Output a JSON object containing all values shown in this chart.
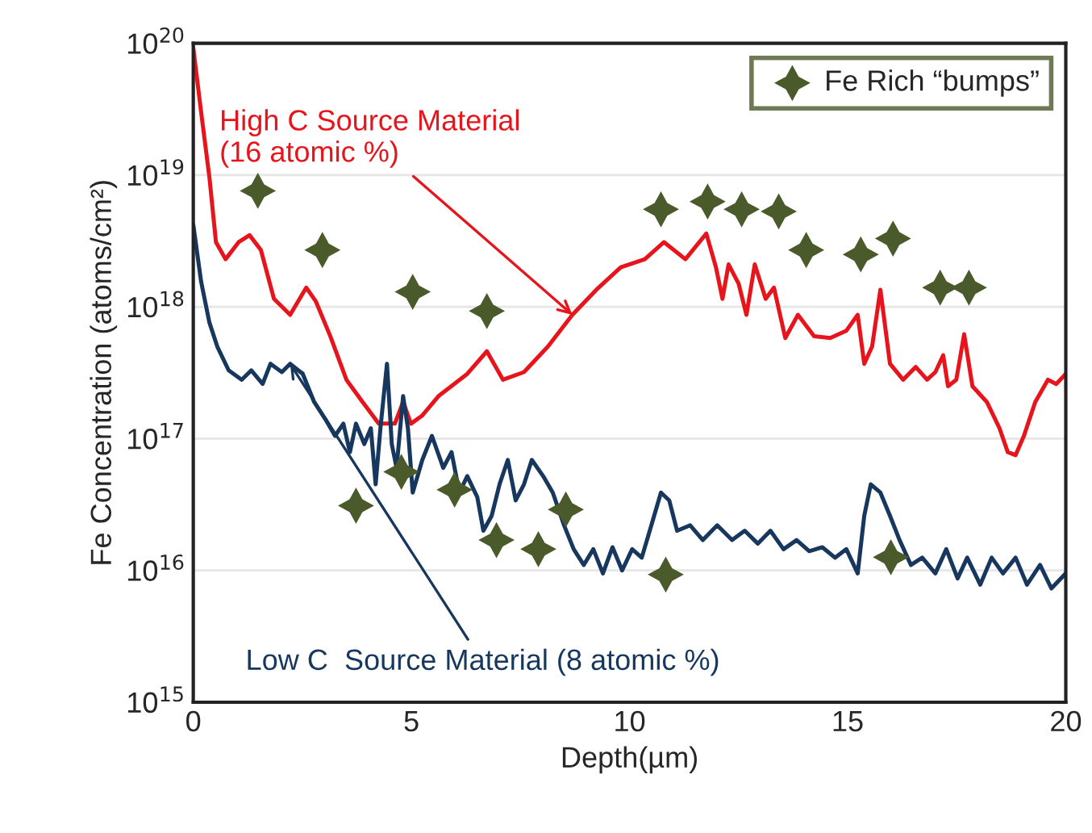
{
  "chart_data": {
    "type": "line",
    "xlabel": "Depth(µm)",
    "ylabel": "Fe Concentration (atoms/cm²)",
    "log": "y",
    "grid": "y",
    "legend": "top right",
    "xlim": [
      0,
      20
    ],
    "xticks": [
      0,
      5,
      10,
      15,
      20
    ],
    "ylim": [
      1000000000000000.0,
      1e+20
    ],
    "yticks": [
      {
        "value": 1000000000000000.0,
        "label": "10$^{15}$"
      },
      {
        "value": 1e+16,
        "label": "10$^{16}$"
      },
      {
        "value": 1e+17,
        "label": "10$^{17}$"
      },
      {
        "value": 1e+18,
        "label": "10$^{18}$"
      },
      {
        "value": 1e+19,
        "label": "10$^{19}$"
      },
      {
        "value": 1e+20,
        "label": "10$^{20}$"
      }
    ],
    "series": [
      {
        "color": "#e8141c",
        "marker": "none",
        "line_style": "solid",
        "x": [
          0,
          0.18,
          0.37,
          0.52,
          0.74,
          1.04,
          1.29,
          1.55,
          1.85,
          2.22,
          2.59,
          2.81,
          3.14,
          3.51,
          3.88,
          4.25,
          4.62,
          4.81,
          4.99,
          5.25,
          5.62,
          6.28,
          6.73,
          7.1,
          7.58,
          8.13,
          8.69,
          9.24,
          9.8,
          10.35,
          10.79,
          11.28,
          11.76,
          11.98,
          12.13,
          12.27,
          12.5,
          12.68,
          12.87,
          13.12,
          13.31,
          13.57,
          13.86,
          14.23,
          14.6,
          14.97,
          15.23,
          15.38,
          15.56,
          15.75,
          15.97,
          16.27,
          16.56,
          16.82,
          17.01,
          17.19,
          17.3,
          17.49,
          17.67,
          17.86,
          18.19,
          18.48,
          18.67,
          18.85,
          19.04,
          19.3,
          19.59,
          19.78,
          20.0
        ],
        "values": [
          9.2e+19,
          3e+19,
          9.6e+18,
          3.1e+18,
          2.3e+18,
          3.1e+18,
          3.5e+18,
          2.7e+18,
          1.15e+18,
          8.7e+17,
          1.4e+18,
          1.1e+18,
          6e+17,
          2.8e+17,
          1.9e+17,
          1.3e+17,
          1.3e+17,
          1.9e+17,
          1.3e+17,
          1.5e+17,
          2.1e+17,
          3.1e+17,
          4.6e+17,
          2.8e+17,
          3.2e+17,
          5e+17,
          8.7e+17,
          1.35e+18,
          2e+18,
          2.3e+18,
          3.1e+18,
          2.3e+18,
          3.6e+18,
          2e+18,
          1.15e+18,
          2.1e+18,
          1.5e+18,
          8.7e+17,
          2.1e+18,
          1.15e+18,
          1.4e+18,
          5.8e+17,
          8.7e+17,
          6e+17,
          5.8e+17,
          6.6e+17,
          8.7e+17,
          3.7e+17,
          5e+17,
          1.35e+18,
          3.7e+17,
          2.8e+17,
          3.5e+17,
          2.8e+17,
          3.2e+17,
          4.3e+17,
          2.5e+17,
          2.8e+17,
          6.2e+17,
          2.5e+17,
          1.9e+17,
          1.2e+17,
          7.9e+16,
          7.5e+16,
          1.05e+17,
          1.9e+17,
          2.8e+17,
          2.6e+17,
          3.1e+17
        ]
      },
      {
        "color": "#17375e",
        "marker": "none",
        "line_style": "solid",
        "x": [
          0,
          0.18,
          0.37,
          0.55,
          0.81,
          1.11,
          1.33,
          1.59,
          1.77,
          2.03,
          2.22,
          2.51,
          2.77,
          3.03,
          3.25,
          3.44,
          3.59,
          3.73,
          3.92,
          4.07,
          4.18,
          4.29,
          4.44,
          4.55,
          4.66,
          4.81,
          4.92,
          5.03,
          5.25,
          5.47,
          5.73,
          5.92,
          6.1,
          6.28,
          6.51,
          6.65,
          6.84,
          7.02,
          7.21,
          7.39,
          7.58,
          7.76,
          8.02,
          8.24,
          8.5,
          8.72,
          8.95,
          9.17,
          9.39,
          9.61,
          9.83,
          10.06,
          10.28,
          10.5,
          10.72,
          10.91,
          11.09,
          11.39,
          11.68,
          12.01,
          12.35,
          12.64,
          12.94,
          13.23,
          13.53,
          13.83,
          14.12,
          14.42,
          14.71,
          14.97,
          15.23,
          15.38,
          15.53,
          15.75,
          15.97,
          16.19,
          16.45,
          16.71,
          17.01,
          17.26,
          17.52,
          17.74,
          18.04,
          18.3,
          18.56,
          18.85,
          19.11,
          19.41,
          19.67,
          20.0
        ],
        "values": [
          4.2e+18,
          1.55e+18,
          7.6e+17,
          5e+17,
          3.3e+17,
          2.8e+17,
          3.3e+17,
          2.6e+17,
          3.7e+17,
          3.2e+17,
          3.7e+17,
          3.1e+17,
          1.9e+17,
          1.4e+17,
          1.05e+17,
          1.3e+17,
          7.9e+16,
          1.3e+17,
          9.1e+16,
          1.2e+17,
          4.5e+16,
          1.2e+17,
          3.7e+17,
          9.1e+16,
          6e+16,
          2.1e+17,
          1.2e+17,
          3.9e+16,
          6.9e+16,
          1.05e+17,
          6e+16,
          7.9e+16,
          3.9e+16,
          5.2e+16,
          3.6e+16,
          2e+16,
          2.6e+16,
          4.5e+16,
          6.9e+16,
          3.4e+16,
          4.5e+16,
          6.9e+16,
          5.2e+16,
          3.9e+16,
          2.2e+16,
          1.45e+16,
          1.1e+16,
          1.45e+16,
          9500000000000000.0,
          1.5e+16,
          1e+16,
          1.45e+16,
          1.25e+16,
          2.2e+16,
          3.9e+16,
          3.4e+16,
          2e+16,
          2.2e+16,
          1.7e+16,
          2.2e+16,
          1.7e+16,
          2e+16,
          1.6e+16,
          2e+16,
          1.45e+16,
          1.7e+16,
          1.4e+16,
          1.5e+16,
          1.25e+16,
          1.45e+16,
          9500000000000000.0,
          2.6e+16,
          4.5e+16,
          3.9e+16,
          2.6e+16,
          1.7e+16,
          1.1e+16,
          1.25e+16,
          9500000000000000.0,
          1.45e+16,
          8700000000000000.0,
          1.25e+16,
          7800000000000000.0,
          1.25e+16,
          9500000000000000.0,
          1.25e+16,
          7800000000000000.0,
          1.1e+16,
          7300000000000000.0,
          9500000000000000.0
        ]
      },
      {
        "type": "scatter",
        "name": "Fe Rich “bumps”",
        "color": "#4b5a2a",
        "marker": "star",
        "x": [
          1.48,
          2.96,
          5.03,
          6.73,
          3.73,
          4.77,
          5.99,
          6.95,
          7.91,
          8.54,
          10.72,
          11.79,
          12.57,
          13.42,
          14.05,
          15.3,
          16.04,
          17.12,
          17.78,
          10.83,
          15.99
        ],
        "values": [
          7.6e+18,
          2.7e+18,
          1.3e+18,
          9.3e+17,
          3.1e+16,
          5.6e+16,
          4.1e+16,
          1.7e+16,
          1.45e+16,
          2.9e+16,
          5.5e+18,
          6.3e+18,
          5.5e+18,
          5.3e+18,
          2.7e+18,
          2.5e+18,
          3.3e+18,
          1.4e+18,
          1.4e+18,
          9300000000000000.0,
          1.26e+16
        ]
      }
    ],
    "annotations": [
      {
        "text": "High C Source Material\n(16 atomic %)",
        "x": 8.69,
        "y": 8.7e+17
      },
      {
        "text": "Low C  Source Material (8 atomic %)",
        "x": 2.22,
        "y": 3.7e+17
      }
    ]
  }
}
